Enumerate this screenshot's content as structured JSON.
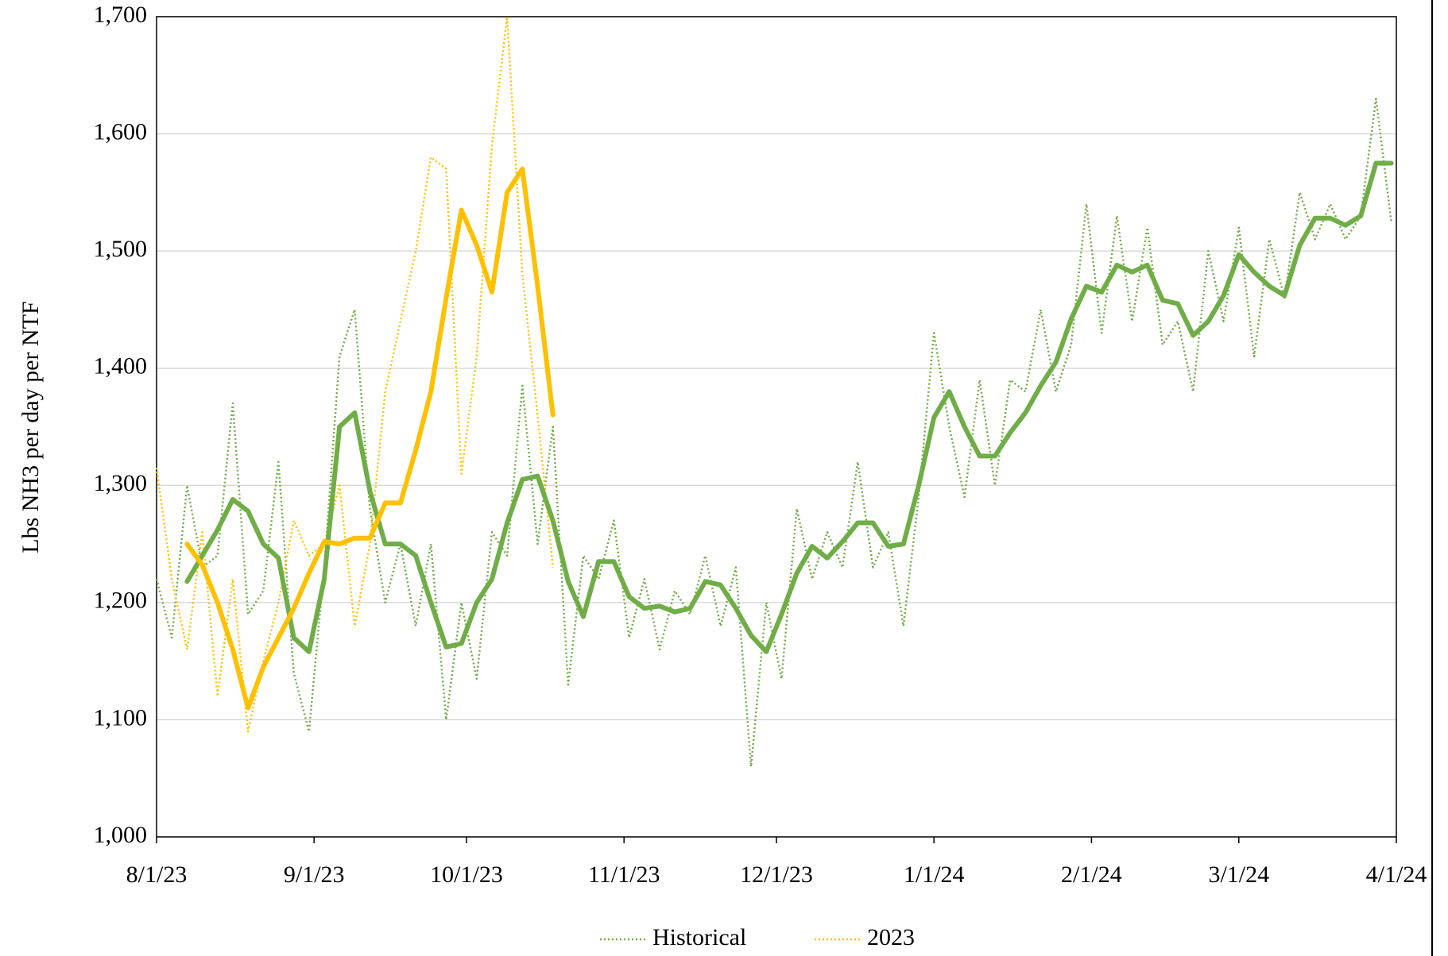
{
  "chart_data": {
    "type": "line",
    "y_label": "Lbs NH3 per day per NTF",
    "x": [
      "8/1/23",
      "8/4/23",
      "8/7/23",
      "8/10/23",
      "8/13/23",
      "8/16/23",
      "8/19/23",
      "8/22/23",
      "8/25/23",
      "8/28/23",
      "8/31/23",
      "9/3/23",
      "9/6/23",
      "9/9/23",
      "9/12/23",
      "9/15/23",
      "9/18/23",
      "9/21/23",
      "9/24/23",
      "9/27/23",
      "9/30/23",
      "10/3/23",
      "10/6/23",
      "10/9/23",
      "10/12/23",
      "10/15/23",
      "10/18/23",
      "10/21/23",
      "10/24/23",
      "10/27/23",
      "10/30/23",
      "11/2/23",
      "11/5/23",
      "11/8/23",
      "11/11/23",
      "11/14/23",
      "11/17/23",
      "11/20/23",
      "11/23/23",
      "11/26/23",
      "11/29/23",
      "12/2/23",
      "12/5/23",
      "12/8/23",
      "12/11/23",
      "12/14/23",
      "12/17/23",
      "12/20/23",
      "12/23/23",
      "12/26/23",
      "12/29/23",
      "1/1/24",
      "1/4/24",
      "1/7/24",
      "1/10/24",
      "1/13/24",
      "1/16/24",
      "1/19/24",
      "1/22/24",
      "1/25/24",
      "1/28/24",
      "1/31/24",
      "2/3/24",
      "2/6/24",
      "2/9/24",
      "2/12/24",
      "2/15/24",
      "2/18/24",
      "2/21/24",
      "2/24/24",
      "2/27/24",
      "3/1/24",
      "3/4/24",
      "3/7/24",
      "3/10/24",
      "3/13/24",
      "3/16/24",
      "3/19/24",
      "3/22/24",
      "3/25/24",
      "3/28/24",
      "3/31/24"
    ],
    "series": [
      {
        "name": "Historical",
        "color": "#70ad47",
        "style": "dotted",
        "values": [
          1220,
          1170,
          1300,
          1230,
          1240,
          1370,
          1190,
          1210,
          1320,
          1140,
          1090,
          1230,
          1410,
          1450,
          1280,
          1200,
          1250,
          1180,
          1250,
          1100,
          1200,
          1135,
          1260,
          1240,
          1385,
          1250,
          1350,
          1130,
          1240,
          1220,
          1270,
          1170,
          1220,
          1160,
          1210,
          1190,
          1240,
          1180,
          1230,
          1060,
          1200,
          1135,
          1280,
          1220,
          1260,
          1230,
          1320,
          1230,
          1260,
          1180,
          1290,
          1430,
          1350,
          1290,
          1390,
          1300,
          1390,
          1380,
          1450,
          1380,
          1420,
          1540,
          1430,
          1530,
          1440,
          1520,
          1420,
          1440,
          1380,
          1500,
          1440,
          1520,
          1410,
          1510,
          1460,
          1550,
          1510,
          1540,
          1510,
          1530,
          1630,
          1525
        ]
      },
      {
        "name": "2023",
        "color": "#ffc000",
        "style": "dotted",
        "values": [
          1315,
          1220,
          1160,
          1260,
          1120,
          1220,
          1090,
          1150,
          1200,
          1270,
          1240,
          1250,
          1300,
          1180,
          1250,
          1380,
          1440,
          1500,
          1580,
          1570,
          1310,
          1410,
          1590,
          1700,
          1480,
          1360,
          1230,
          null,
          null,
          null,
          null,
          null,
          null,
          null,
          null,
          null,
          null,
          null,
          null,
          null,
          null,
          null,
          null,
          null,
          null,
          null,
          null,
          null,
          null,
          null,
          null,
          null,
          null,
          null,
          null,
          null,
          null,
          null,
          null,
          null,
          null,
          null,
          null,
          null,
          null,
          null,
          null,
          null,
          null,
          null,
          null,
          null,
          null,
          null,
          null,
          null,
          null,
          null,
          null,
          null,
          null,
          null
        ]
      },
      {
        "color": "#70ad47",
        "style": "solid",
        "values": [
          null,
          null,
          1218,
          1240,
          1262,
          1288,
          1278,
          1250,
          1238,
          1170,
          1158,
          1220,
          1350,
          1362,
          1295,
          1250,
          1250,
          1240,
          1200,
          1162,
          1165,
          1200,
          1220,
          1268,
          1305,
          1308,
          1270,
          1218,
          1188,
          1235,
          1235,
          1205,
          1195,
          1197,
          1192,
          1195,
          1218,
          1215,
          1195,
          1172,
          1158,
          1190,
          1225,
          1248,
          1238,
          1252,
          1268,
          1268,
          1248,
          1250,
          1300,
          1358,
          1380,
          1350,
          1325,
          1325,
          1345,
          1362,
          1385,
          1405,
          1442,
          1470,
          1465,
          1488,
          1482,
          1488,
          1458,
          1455,
          1428,
          1440,
          1462,
          1497,
          1482,
          1470,
          1462,
          1505,
          1528,
          1528,
          1522,
          1530,
          1575,
          1575
        ]
      },
      {
        "color": "#ffc000",
        "style": "solid",
        "values": [
          null,
          null,
          1250,
          1232,
          1200,
          1160,
          1110,
          1145,
          1170,
          1195,
          1225,
          1252,
          1250,
          1255,
          1255,
          1285,
          1285,
          1330,
          1380,
          1460,
          1535,
          1505,
          1465,
          1550,
          1570,
          1470,
          1360,
          null,
          null,
          null,
          null,
          null,
          null,
          null,
          null,
          null,
          null,
          null,
          null,
          null,
          null,
          null,
          null,
          null,
          null,
          null,
          null,
          null,
          null,
          null,
          null,
          null,
          null,
          null,
          null,
          null,
          null,
          null,
          null,
          null,
          null,
          null,
          null,
          null,
          null,
          null,
          null,
          null,
          null,
          null,
          null,
          null,
          null,
          null,
          null,
          null,
          null,
          null,
          null,
          null,
          null,
          null
        ]
      }
    ],
    "xlim": [
      "8/1/23",
      "4/1/24"
    ],
    "xticks": [
      "8/1/23",
      "9/1/23",
      "10/1/23",
      "11/1/23",
      "12/1/23",
      "1/1/24",
      "2/1/24",
      "3/1/24",
      "4/1/24"
    ],
    "ylim": [
      1000,
      1700
    ],
    "yticks": [
      {
        "value": 1000,
        "label": "1,000"
      },
      {
        "value": 1100,
        "label": "1,100"
      },
      {
        "value": 1200,
        "label": "1,200"
      },
      {
        "value": 1300,
        "label": "1,300"
      },
      {
        "value": 1400,
        "label": "1,400"
      },
      {
        "value": 1500,
        "label": "1,500"
      },
      {
        "value": 1600,
        "label": "1,600"
      },
      {
        "value": 1700,
        "label": "1,700"
      }
    ],
    "grid": true,
    "legend": "bottom"
  }
}
